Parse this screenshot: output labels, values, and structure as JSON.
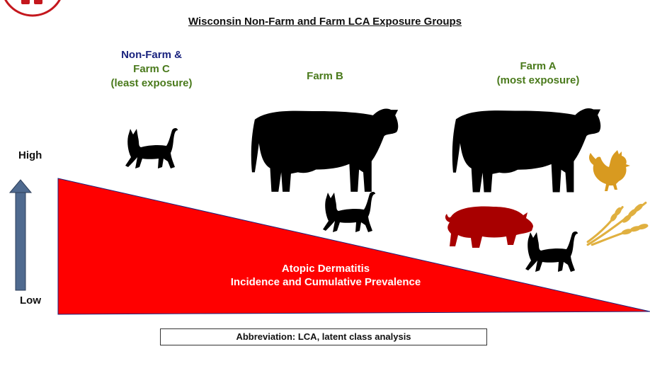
{
  "title": "Wisconsin Non-Farm and Farm LCA Exposure Groups",
  "groups": {
    "nonfarm": {
      "line1": "Non-Farm &",
      "line2": "Farm C",
      "line3": "(least exposure)"
    },
    "farm_b": {
      "label": "Farm B"
    },
    "farm_a": {
      "line1": "Farm A",
      "line2": "(most exposure)"
    }
  },
  "levels": {
    "high": "High",
    "low": "Low"
  },
  "triangle": {
    "line1": "Atopic Dermatitis",
    "line2": "Incidence and Cumulative Prevalence"
  },
  "abbreviation": "Abbreviation: LCA, latent class analysis",
  "colors": {
    "triangle": "#ff0000",
    "nonfarm_label": "#1a237e",
    "farm_label": "#4a7a1c",
    "pig": "#a80000",
    "rooster": "#d89a20",
    "wheat": "#e0b040",
    "arrow": "#4f6a8f",
    "animal": "#000000"
  },
  "icons": [
    "cat-icon",
    "cow-icon",
    "pig-icon",
    "rooster-icon",
    "wheat-icon",
    "arrow-up-icon"
  ]
}
